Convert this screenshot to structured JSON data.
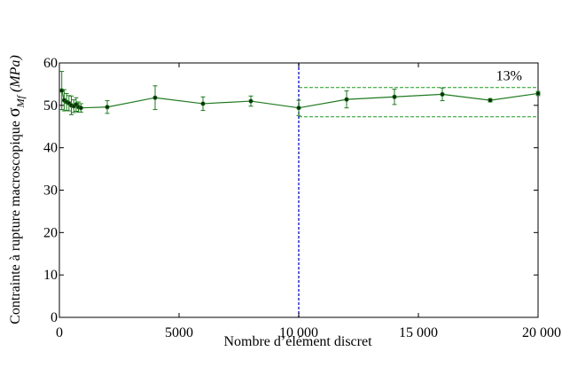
{
  "chart_data": {
    "type": "line",
    "title": "",
    "xlabel": "Nombre d’élément discret",
    "ylabel_prefix": "Contrainte à rupture macroscopique ",
    "ylabel_symbol": "σ",
    "ylabel_sub": "Mf",
    "ylabel_unit": " (MPa)",
    "xlim": [
      0,
      20000
    ],
    "ylim": [
      0,
      60
    ],
    "xticks": [
      0,
      5000,
      10000,
      15000,
      20000
    ],
    "xtick_labels": [
      "0",
      "5000",
      "10 000",
      "15 000",
      "20 000"
    ],
    "yticks": [
      0,
      10,
      20,
      30,
      40,
      50,
      60
    ],
    "ytick_labels": [
      "0",
      "10",
      "20",
      "30",
      "40",
      "50",
      "60"
    ],
    "grid": false,
    "line_color": "#1f7a1f",
    "series": [
      {
        "x": [
          100,
          200,
          300,
          400,
          500,
          600,
          700,
          800,
          900,
          2000,
          4000,
          6000,
          8000,
          10000,
          12000,
          14000,
          16000,
          18000,
          20000
        ],
        "y": [
          53.5,
          51.2,
          50.8,
          50.5,
          50.0,
          49.8,
          50.2,
          49.6,
          49.4,
          49.6,
          51.8,
          50.4,
          51.0,
          49.4,
          51.4,
          52.0,
          52.6,
          51.2,
          52.8
        ],
        "err": [
          4.5,
          2.5,
          2.0,
          1.8,
          2.2,
          1.5,
          1.6,
          1.2,
          1.0,
          1.5,
          2.8,
          1.6,
          1.2,
          1.8,
          2.0,
          1.8,
          1.5,
          0.4,
          0.5
        ]
      }
    ],
    "vline": {
      "x": 10000,
      "color": "#2a2acc"
    },
    "band": {
      "x_start": 10000,
      "x_end": 20000,
      "y_low": 47.3,
      "y_high": 54.2,
      "color": "#1f9a1f",
      "label": "13%"
    }
  }
}
